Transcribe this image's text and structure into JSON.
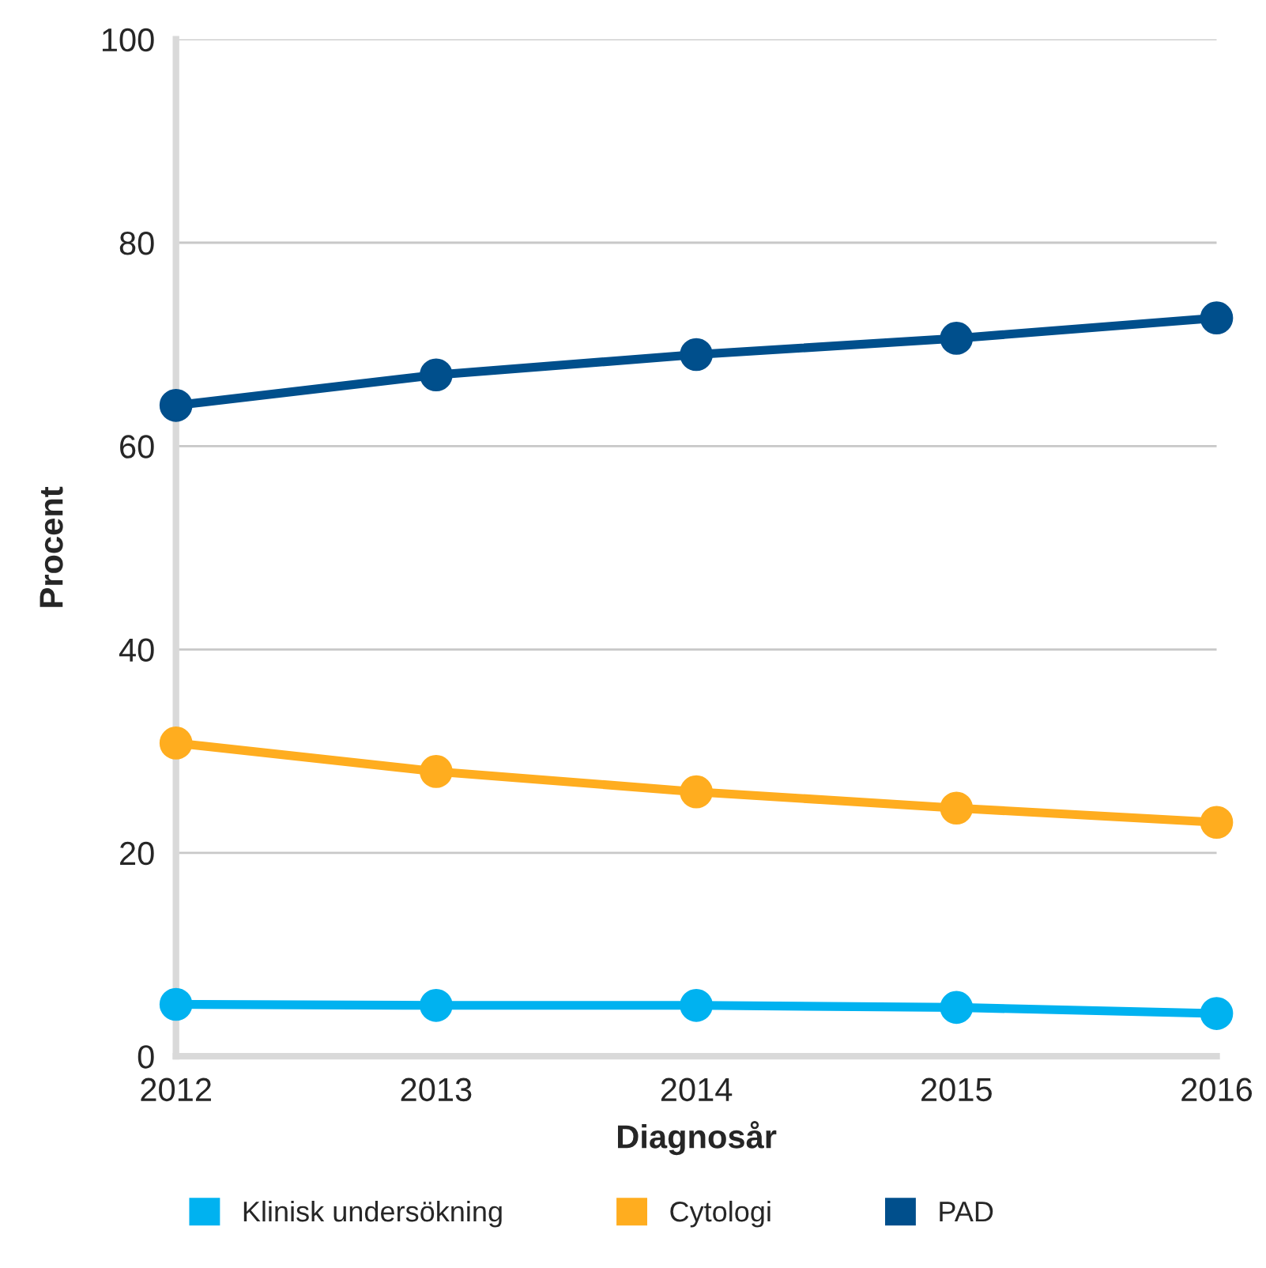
{
  "chart_data": {
    "type": "line",
    "xlabel": "Diagnosår",
    "ylabel": "Procent",
    "x": [
      2012,
      2013,
      2014,
      2015,
      2016
    ],
    "xlim": [
      2012,
      2016
    ],
    "xticks": [
      2012,
      2013,
      2014,
      2015,
      2016
    ],
    "ylim": [
      0,
      100
    ],
    "yticks": [
      0,
      20,
      40,
      60,
      80,
      100
    ],
    "grid": "y",
    "legend": "bottom",
    "marker": "circle",
    "line_style": "solid",
    "series": [
      {
        "name": "Klinisk undersökning",
        "color": "#00b2f0",
        "values": [
          5.1,
          5.0,
          5.0,
          4.8,
          4.2
        ]
      },
      {
        "name": "Cytologi",
        "color": "#ffad1f",
        "values": [
          30.8,
          28.0,
          26.0,
          24.4,
          23.0
        ]
      },
      {
        "name": "PAD",
        "color": "#004f8c",
        "values": [
          64.0,
          67.0,
          69.0,
          70.6,
          72.6
        ]
      }
    ]
  }
}
